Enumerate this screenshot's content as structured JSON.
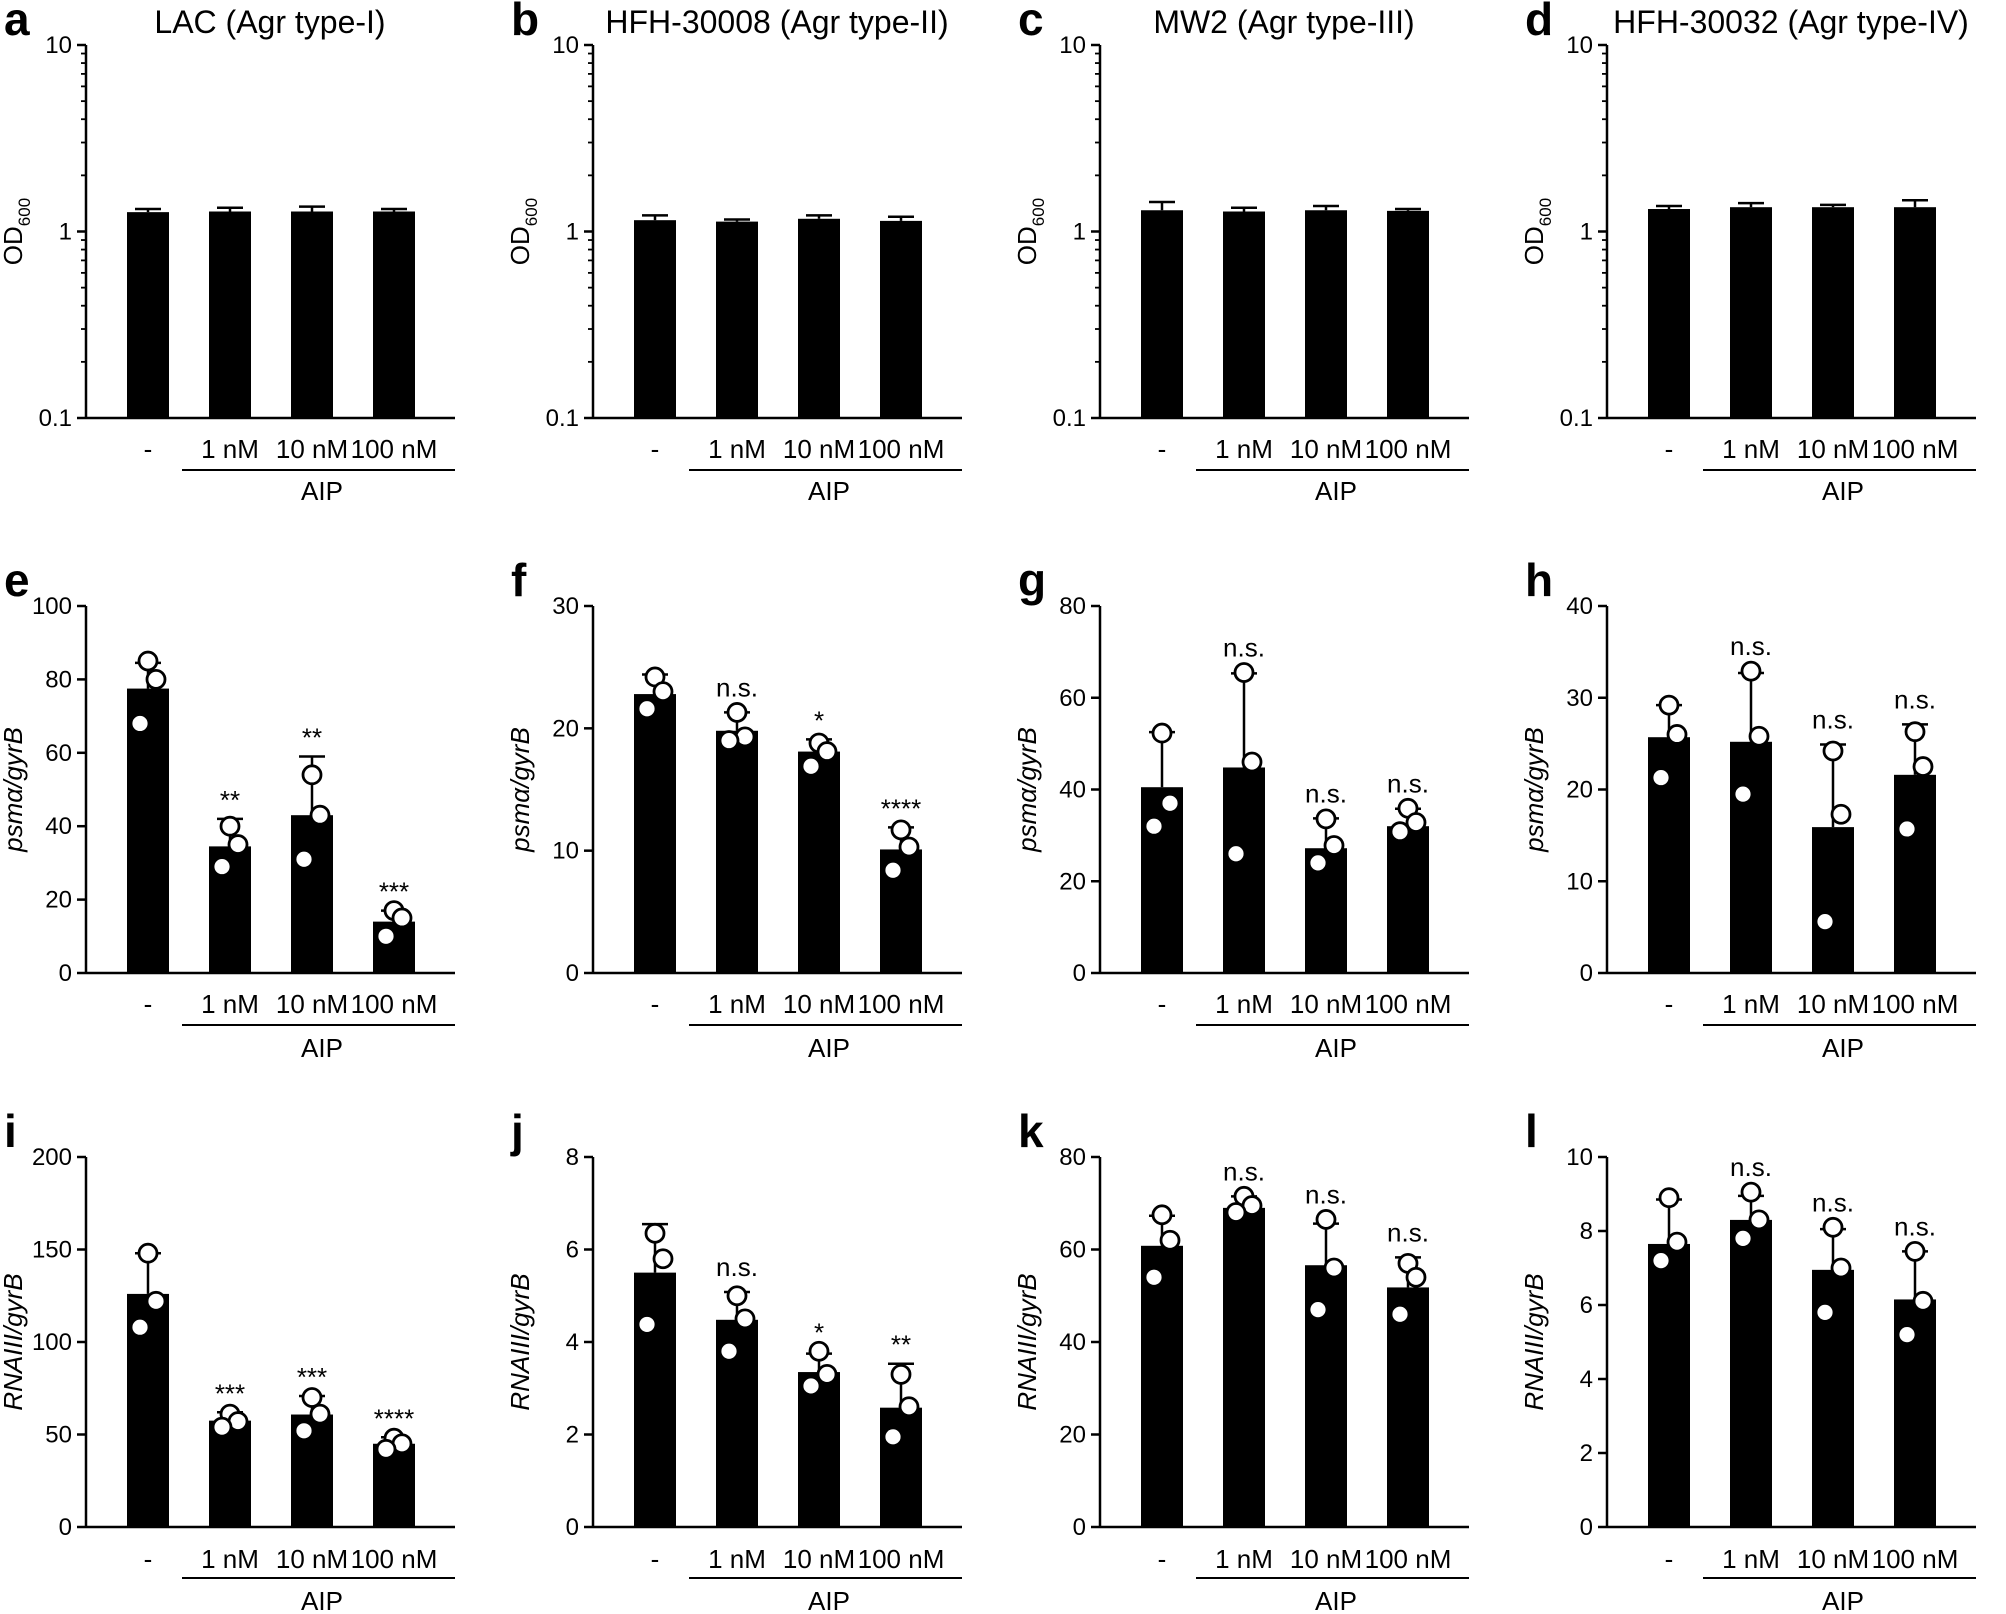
{
  "figure": {
    "group_label": "AIP",
    "categories": [
      "-",
      "1 nM",
      "10 nM",
      "100 nM"
    ]
  },
  "chart_data": [
    {
      "letter": "a",
      "type": "bar",
      "title": "LAC (Agr type-I)",
      "scale": "log",
      "ylim": [
        0.1,
        10
      ],
      "ticks": [
        "0.1",
        "1",
        "10"
      ],
      "ylabel": "OD",
      "ylabel_sub": "600",
      "categories": [
        "-",
        "1 nM",
        "10 nM",
        "100 nM"
      ],
      "values": [
        1.27,
        1.28,
        1.28,
        1.28
      ],
      "errors": [
        0.05,
        0.06,
        0.08,
        0.04
      ],
      "points": [],
      "significance": [
        "",
        "",
        "",
        ""
      ],
      "xgroup": "AIP"
    },
    {
      "letter": "b",
      "type": "bar",
      "title": "HFH-30008 (Agr type-II)",
      "scale": "log",
      "ylim": [
        0.1,
        10
      ],
      "ticks": [
        "0.1",
        "1",
        "10"
      ],
      "ylabel": "OD",
      "ylabel_sub": "600",
      "categories": [
        "-",
        "1 nM",
        "10 nM",
        "100 nM"
      ],
      "values": [
        1.15,
        1.13,
        1.17,
        1.14
      ],
      "errors": [
        0.07,
        0.03,
        0.05,
        0.06
      ],
      "points": [],
      "significance": [
        "",
        "",
        "",
        ""
      ],
      "xgroup": "AIP"
    },
    {
      "letter": "c",
      "type": "bar",
      "title": "MW2 (Agr type-III)",
      "scale": "log",
      "ylim": [
        0.1,
        10
      ],
      "ticks": [
        "0.1",
        "1",
        "10"
      ],
      "ylabel": "OD",
      "ylabel_sub": "600",
      "categories": [
        "-",
        "1 nM",
        "10 nM",
        "100 nM"
      ],
      "values": [
        1.3,
        1.28,
        1.3,
        1.29
      ],
      "errors": [
        0.14,
        0.06,
        0.07,
        0.03
      ],
      "points": [],
      "significance": [
        "",
        "",
        "",
        ""
      ],
      "xgroup": "AIP"
    },
    {
      "letter": "d",
      "type": "bar",
      "title": "HFH-30032 (Agr type-IV)",
      "scale": "log",
      "ylim": [
        0.1,
        10
      ],
      "ticks": [
        "0.1",
        "1",
        "10"
      ],
      "ylabel": "OD",
      "ylabel_sub": "600",
      "categories": [
        "-",
        "1 nM",
        "10 nM",
        "100 nM"
      ],
      "values": [
        1.32,
        1.35,
        1.35,
        1.35
      ],
      "errors": [
        0.05,
        0.07,
        0.04,
        0.12
      ],
      "points": [],
      "significance": [
        "",
        "",
        "",
        ""
      ],
      "xgroup": "AIP"
    },
    {
      "letter": "e",
      "type": "bar",
      "title": "",
      "scale": "linear",
      "ylim": [
        0,
        100
      ],
      "ticks": [
        "0",
        "20",
        "40",
        "60",
        "80",
        "100"
      ],
      "ylabel": "psmα/gyrB",
      "ylabel_sub": "",
      "categories": [
        "-",
        "1 nM",
        "10 nM",
        "100 nM"
      ],
      "values": [
        77.5,
        34.5,
        43,
        14
      ],
      "errors": [
        7,
        7.5,
        16,
        3
      ],
      "points": [
        [
          85,
          80,
          68
        ],
        [
          40,
          35,
          29
        ],
        [
          54,
          43,
          31
        ],
        [
          17,
          15,
          10
        ]
      ],
      "significance": [
        "",
        "**",
        "**",
        "***"
      ],
      "xgroup": "AIP"
    },
    {
      "letter": "f",
      "type": "bar",
      "title": "",
      "scale": "linear",
      "ylim": [
        0,
        30
      ],
      "ticks": [
        "0",
        "10",
        "20",
        "30"
      ],
      "ylabel": "psmα/gyrB",
      "ylabel_sub": "",
      "categories": [
        "-",
        "1 nM",
        "10 nM",
        "100 nM"
      ],
      "values": [
        22.8,
        19.8,
        18.1,
        10.1
      ],
      "errors": [
        1.6,
        1.5,
        1.0,
        1.8
      ],
      "points": [
        [
          24.2,
          23,
          21.6
        ],
        [
          21.3,
          19.3,
          19
        ],
        [
          18.8,
          18.1,
          16.9
        ],
        [
          11.7,
          10.3,
          8.4
        ]
      ],
      "significance": [
        "",
        "n.s.",
        "*",
        "****"
      ],
      "xgroup": "AIP"
    },
    {
      "letter": "g",
      "type": "bar",
      "title": "",
      "scale": "linear",
      "ylim": [
        0,
        80
      ],
      "ticks": [
        "0",
        "20",
        "40",
        "60",
        "80"
      ],
      "ylabel": "psmα/gyrB",
      "ylabel_sub": "",
      "categories": [
        "-",
        "1 nM",
        "10 nM",
        "100 nM"
      ],
      "values": [
        40.5,
        44.8,
        27.2,
        32
      ],
      "errors": [
        12,
        20.5,
        6.5,
        3.8
      ],
      "points": [
        [
          52.3,
          37,
          32
        ],
        [
          65.5,
          46,
          26
        ],
        [
          33.6,
          27.8,
          24
        ],
        [
          35.9,
          32.8,
          30.8
        ]
      ],
      "significance": [
        "",
        "n.s.",
        "n.s.",
        "n.s."
      ],
      "xgroup": "AIP"
    },
    {
      "letter": "h",
      "type": "bar",
      "title": "",
      "scale": "linear",
      "ylim": [
        0,
        40
      ],
      "ticks": [
        "0",
        "10",
        "20",
        "30",
        "40"
      ],
      "ylabel": "psmα/gyrB",
      "ylabel_sub": "",
      "categories": [
        "-",
        "1 nM",
        "10 nM",
        "100 nM"
      ],
      "values": [
        25.7,
        25.2,
        15.9,
        21.6
      ],
      "errors": [
        3.5,
        7.5,
        9,
        5.5
      ],
      "points": [
        [
          29.2,
          26,
          21.3
        ],
        [
          32.9,
          25.8,
          19.5
        ],
        [
          24.2,
          17.3,
          5.6
        ],
        [
          26.3,
          22.5,
          15.7
        ]
      ],
      "significance": [
        "",
        "n.s.",
        "n.s.",
        "n.s."
      ],
      "xgroup": "AIP"
    },
    {
      "letter": "i",
      "type": "bar",
      "title": "",
      "scale": "linear",
      "ylim": [
        0,
        200
      ],
      "ticks": [
        "0",
        "50",
        "100",
        "150",
        "200"
      ],
      "ylabel": "RNAIII/gyrB",
      "ylabel_sub": "",
      "categories": [
        "-",
        "1 nM",
        "10 nM",
        "100 nM"
      ],
      "values": [
        126,
        57.5,
        60.8,
        45
      ],
      "errors": [
        22,
        4.5,
        10,
        3.5
      ],
      "points": [
        [
          148,
          122,
          108
        ],
        [
          61,
          57,
          54
        ],
        [
          70,
          61,
          52
        ],
        [
          48,
          45,
          42
        ]
      ],
      "significance": [
        "",
        "***",
        "***",
        "****"
      ],
      "xgroup": "AIP"
    },
    {
      "letter": "j",
      "type": "bar",
      "title": "",
      "scale": "linear",
      "ylim": [
        0,
        8
      ],
      "ticks": [
        "0",
        "2",
        "4",
        "6",
        "8"
      ],
      "ylabel": "RNAIII/gyrB",
      "ylabel_sub": "",
      "categories": [
        "-",
        "1 nM",
        "10 nM",
        "100 nM"
      ],
      "values": [
        5.5,
        4.48,
        3.35,
        2.58
      ],
      "errors": [
        1.05,
        0.6,
        0.4,
        0.95
      ],
      "points": [
        [
          6.35,
          5.8,
          4.38
        ],
        [
          5.0,
          4.5,
          3.8
        ],
        [
          3.8,
          3.3,
          3.05
        ],
        [
          3.3,
          2.6,
          1.95
        ]
      ],
      "significance": [
        "",
        "n.s.",
        "*",
        "**"
      ],
      "xgroup": "AIP"
    },
    {
      "letter": "k",
      "type": "bar",
      "title": "",
      "scale": "linear",
      "ylim": [
        0,
        80
      ],
      "ticks": [
        "0",
        "20",
        "40",
        "60",
        "80"
      ],
      "ylabel": "RNAIII/gyrB",
      "ylabel_sub": "",
      "categories": [
        "-",
        "1 nM",
        "10 nM",
        "100 nM"
      ],
      "values": [
        60.8,
        69,
        56.6,
        51.8
      ],
      "errors": [
        6.5,
        2.5,
        9,
        6.5
      ],
      "points": [
        [
          67.5,
          62,
          54
        ],
        [
          71.5,
          69.5,
          68
        ],
        [
          66.5,
          56,
          47
        ],
        [
          57,
          54,
          46
        ]
      ],
      "significance": [
        "",
        "n.s.",
        "n.s.",
        "n.s."
      ],
      "xgroup": "AIP"
    },
    {
      "letter": "l",
      "type": "bar",
      "title": "",
      "scale": "linear",
      "ylim": [
        0,
        10
      ],
      "ticks": [
        "0",
        "2",
        "4",
        "6",
        "8",
        "10"
      ],
      "ylabel": "RNAIII/gyrB",
      "ylabel_sub": "",
      "categories": [
        "-",
        "1 nM",
        "10 nM",
        "100 nM"
      ],
      "values": [
        7.65,
        8.3,
        6.95,
        6.15
      ],
      "errors": [
        1.2,
        0.65,
        1.1,
        1.3
      ],
      "points": [
        [
          8.9,
          7.7,
          7.2
        ],
        [
          9.05,
          8.3,
          7.8
        ],
        [
          8.1,
          7.0,
          5.8
        ],
        [
          7.45,
          6.1,
          5.2
        ]
      ],
      "significance": [
        "",
        "n.s.",
        "n.s.",
        "n.s."
      ],
      "xgroup": "AIP"
    }
  ]
}
